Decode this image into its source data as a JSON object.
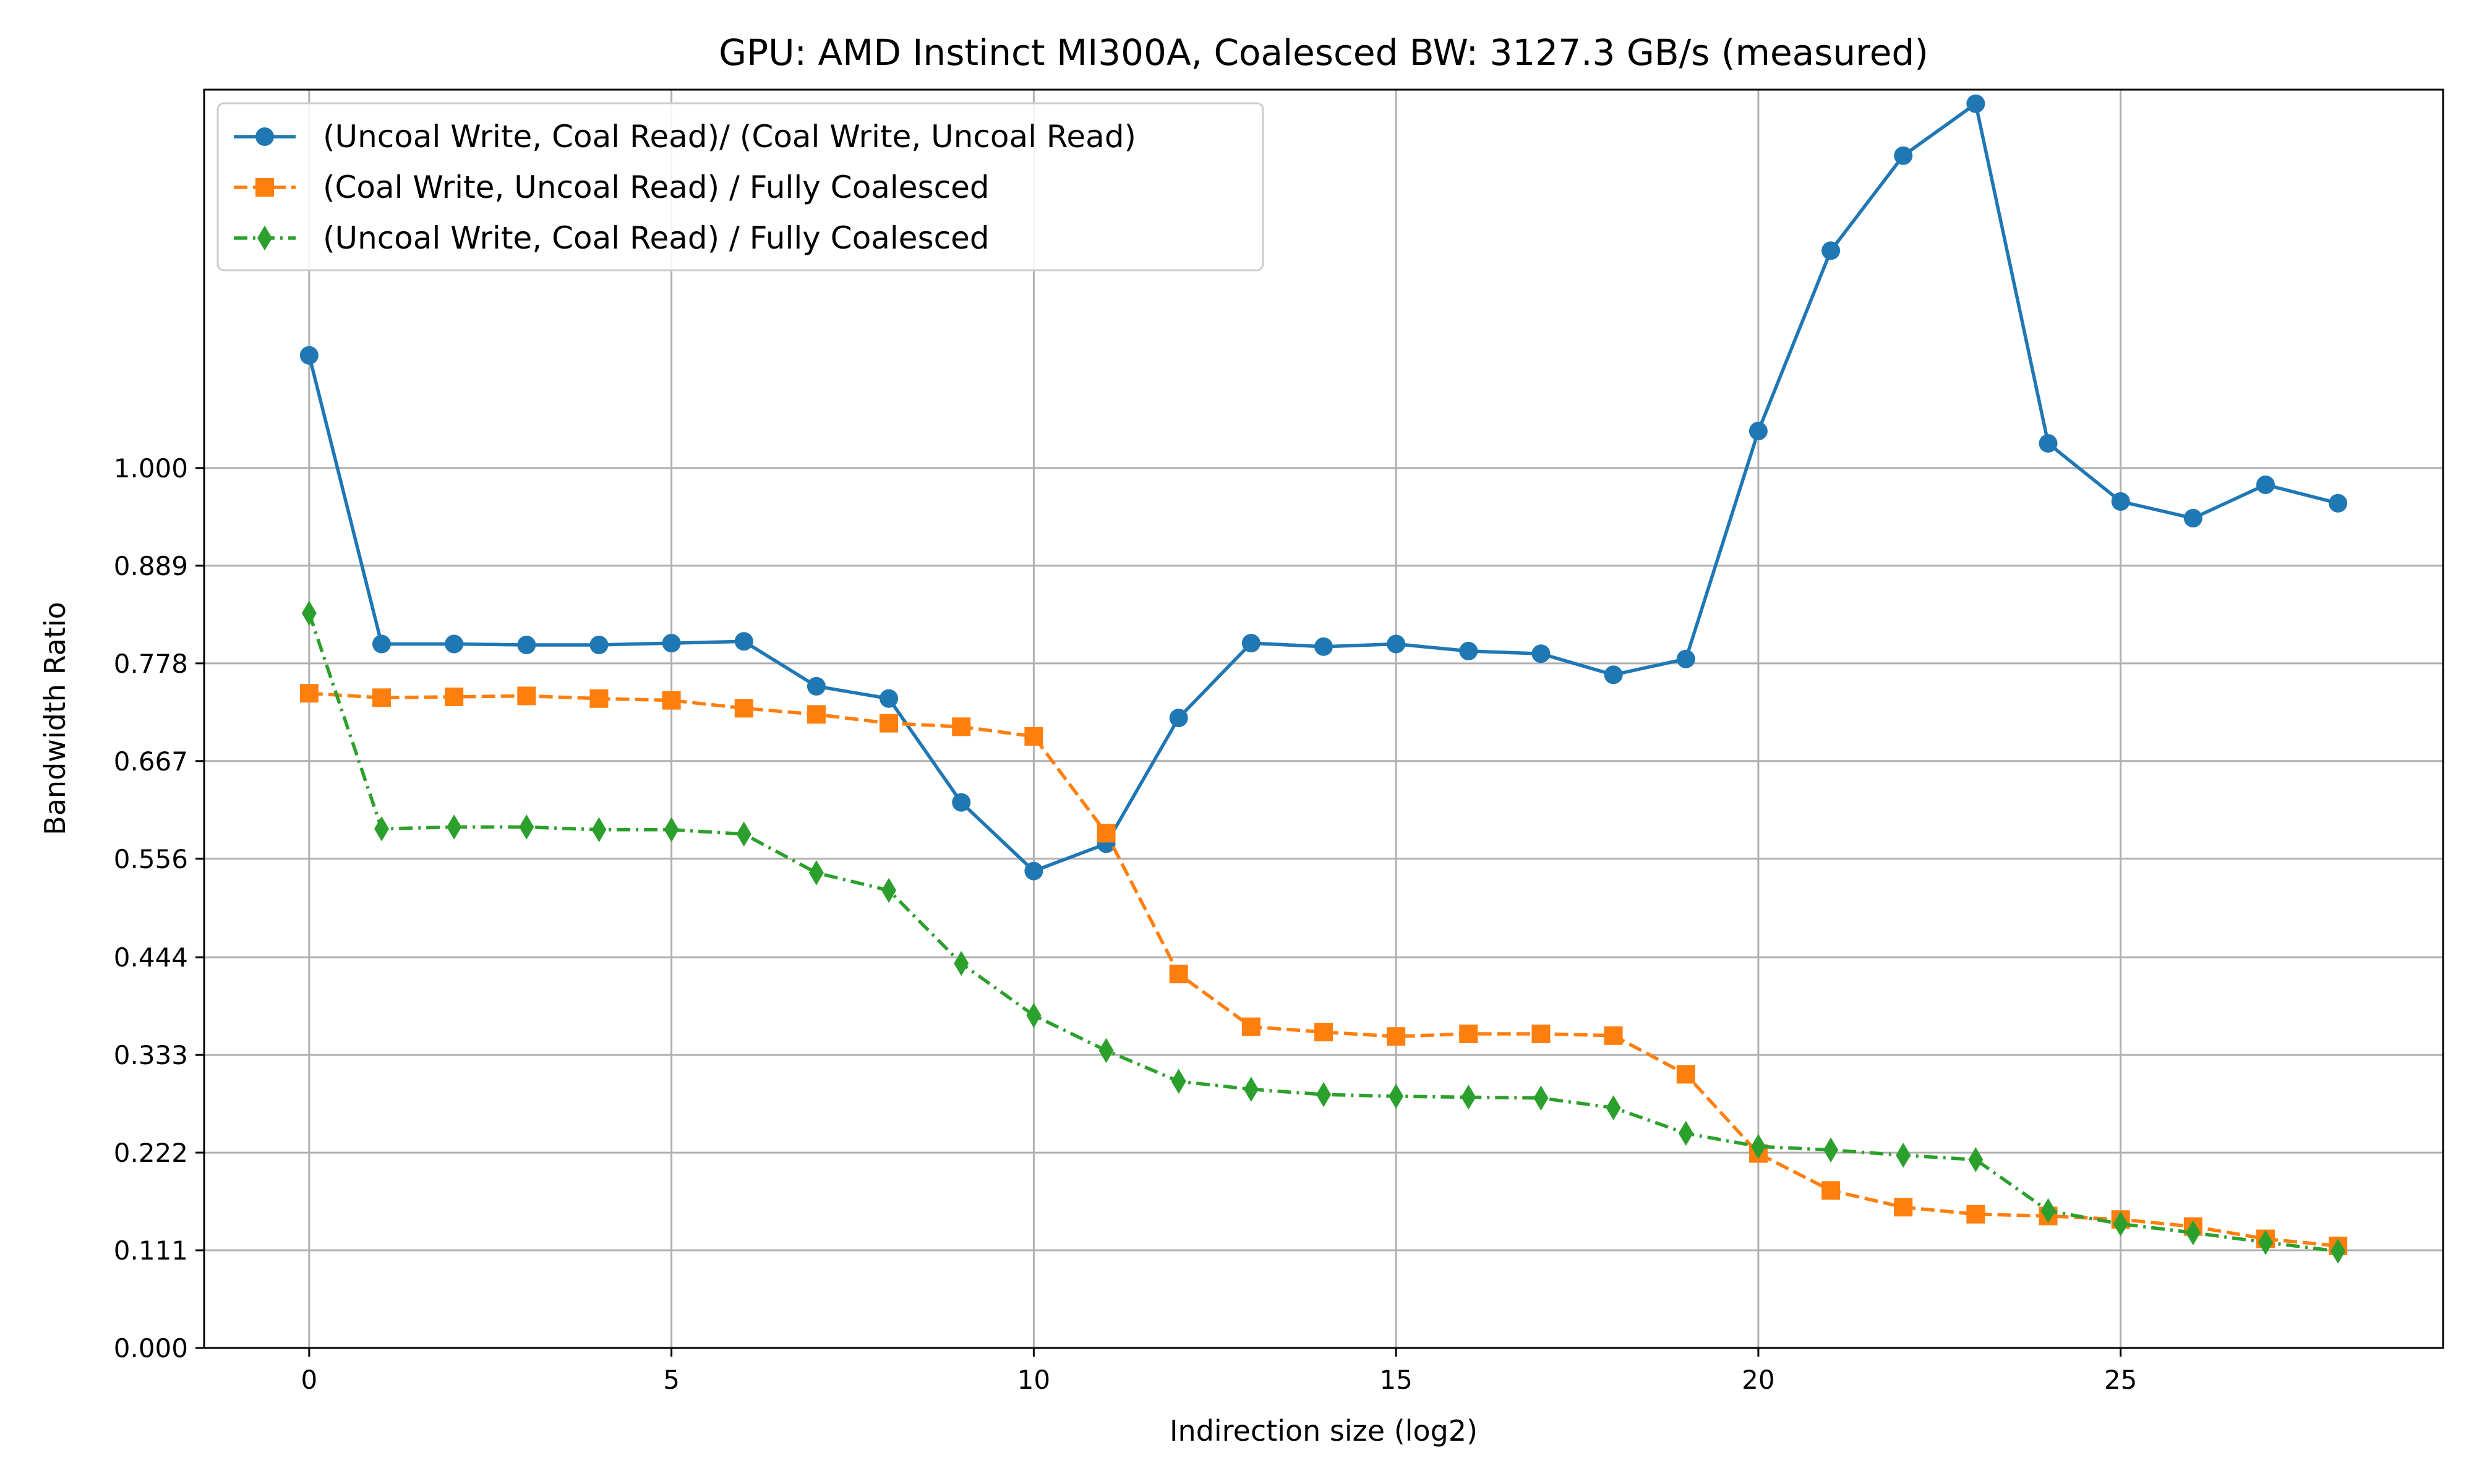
{
  "chart_data": {
    "type": "line",
    "title": "GPU: AMD Instinct MI300A, Coalesced BW: 3127.3 GB/s (measured)",
    "xlabel": "Indirection size (log2)",
    "ylabel": "Bandwidth Ratio",
    "xlim": [
      -1.45,
      29.45
    ],
    "ylim": [
      0,
      1.43
    ],
    "xticks": [
      0,
      5,
      10,
      15,
      20,
      25
    ],
    "xtick_labels": [
      "0",
      "5",
      "10",
      "15",
      "20",
      "25"
    ],
    "yticks": [
      0,
      0.111,
      0.222,
      0.333,
      0.444,
      0.556,
      0.667,
      0.778,
      0.889,
      1.0
    ],
    "ytick_labels": [
      "0.000",
      "0.111",
      "0.222",
      "0.333",
      "0.444",
      "0.556",
      "0.667",
      "0.778",
      "0.889",
      "1.000"
    ],
    "grid": true,
    "legend_position": "upper-left",
    "x": [
      0,
      1,
      2,
      3,
      4,
      5,
      6,
      7,
      8,
      9,
      10,
      11,
      12,
      13,
      14,
      15,
      16,
      17,
      18,
      19,
      20,
      21,
      22,
      23,
      24,
      25,
      26,
      27,
      28
    ],
    "series": [
      {
        "name": "(Uncoal Write, Coal Read)/ (Coal Write, Uncoal Read)",
        "color": "#1f77b4",
        "marker": "circle",
        "linestyle": "solid",
        "values": [
          1.128,
          0.8,
          0.8,
          0.799,
          0.799,
          0.801,
          0.803,
          0.752,
          0.738,
          0.62,
          0.542,
          0.573,
          0.716,
          0.801,
          0.797,
          0.8,
          0.792,
          0.789,
          0.765,
          0.783,
          1.042,
          1.247,
          1.355,
          1.414,
          1.028,
          0.962,
          0.943,
          0.981,
          0.96
        ]
      },
      {
        "name": "(Coal Write, Uncoal Read) / Fully Coalesced",
        "color": "#ff7f0e",
        "marker": "square",
        "linestyle": "dashed",
        "values": [
          0.744,
          0.739,
          0.74,
          0.741,
          0.738,
          0.736,
          0.727,
          0.72,
          0.71,
          0.706,
          0.695,
          0.585,
          0.425,
          0.365,
          0.359,
          0.354,
          0.357,
          0.357,
          0.355,
          0.311,
          0.221,
          0.179,
          0.16,
          0.152,
          0.15,
          0.146,
          0.138,
          0.124,
          0.116
        ]
      },
      {
        "name": "(Uncoal Write, Coal Read) / Fully Coalesced",
        "color": "#2ca02c",
        "marker": "diamond",
        "linestyle": "dashdot",
        "values": [
          0.835,
          0.59,
          0.592,
          0.592,
          0.589,
          0.589,
          0.584,
          0.54,
          0.52,
          0.437,
          0.378,
          0.338,
          0.303,
          0.294,
          0.288,
          0.286,
          0.285,
          0.284,
          0.273,
          0.244,
          0.229,
          0.225,
          0.219,
          0.214,
          0.156,
          0.141,
          0.131,
          0.12,
          0.11
        ]
      }
    ]
  }
}
